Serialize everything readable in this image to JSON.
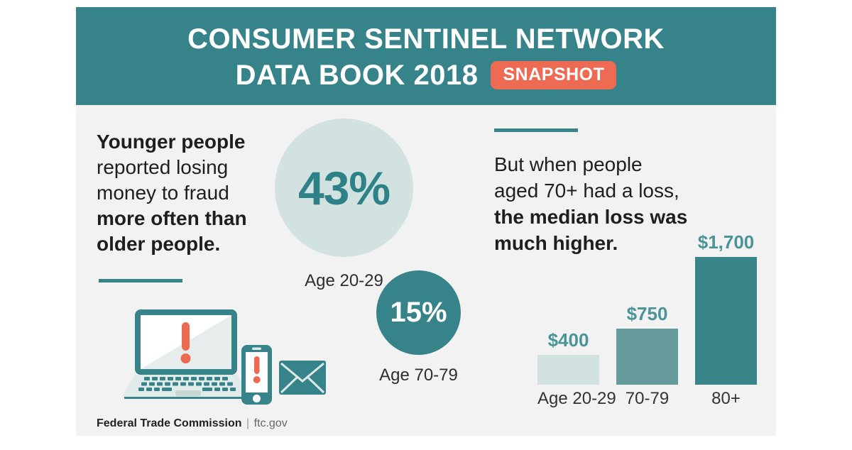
{
  "header": {
    "title_line1": "CONSUMER SENTINEL NETWORK",
    "title_line2": "DATA BOOK 2018",
    "badge": "SNAPSHOT"
  },
  "left_panel": {
    "lines": [
      "Younger people",
      "reported losing",
      "money to fraud",
      "more often than",
      "older people."
    ]
  },
  "right_panel": {
    "lines": [
      "But when people",
      "aged 70+ had a loss,",
      "the median loss was",
      "much higher."
    ]
  },
  "footer": {
    "brand": "Federal Trade Commission",
    "divider": "|",
    "site": "ftc.gov"
  },
  "colors": {
    "teal": "#37838A",
    "teal_text": "#2E8287",
    "light_teal": "#D2E2E1",
    "mid_teal": "#679B9B",
    "dark_bar": "#398589",
    "coral": "#EC6A52",
    "value_label": "#4A9497",
    "card_bg": "#F2F2F3"
  },
  "chart_data": [
    {
      "type": "bar",
      "title": "Share who reported losing money to fraud, by age",
      "categories": [
        "Age 20-29",
        "Age 70-79"
      ],
      "values": [
        43,
        15
      ],
      "value_labels": [
        "43%",
        "15%"
      ],
      "unit": "percent",
      "note": "shown as proportional circles"
    },
    {
      "type": "bar",
      "title": "Median loss when people aged 70+ had a loss",
      "categories": [
        "Age 20-29",
        "70-79",
        "80+"
      ],
      "values": [
        400,
        750,
        1700
      ],
      "value_labels": [
        "$400",
        "$750",
        "$1,700"
      ],
      "unit": "USD",
      "ylim": [
        0,
        1700
      ],
      "bar_colors": [
        "#D2E2E1",
        "#679B9B",
        "#398589"
      ],
      "value_label_color": "#4A9497",
      "grid": false,
      "legend": false
    }
  ]
}
